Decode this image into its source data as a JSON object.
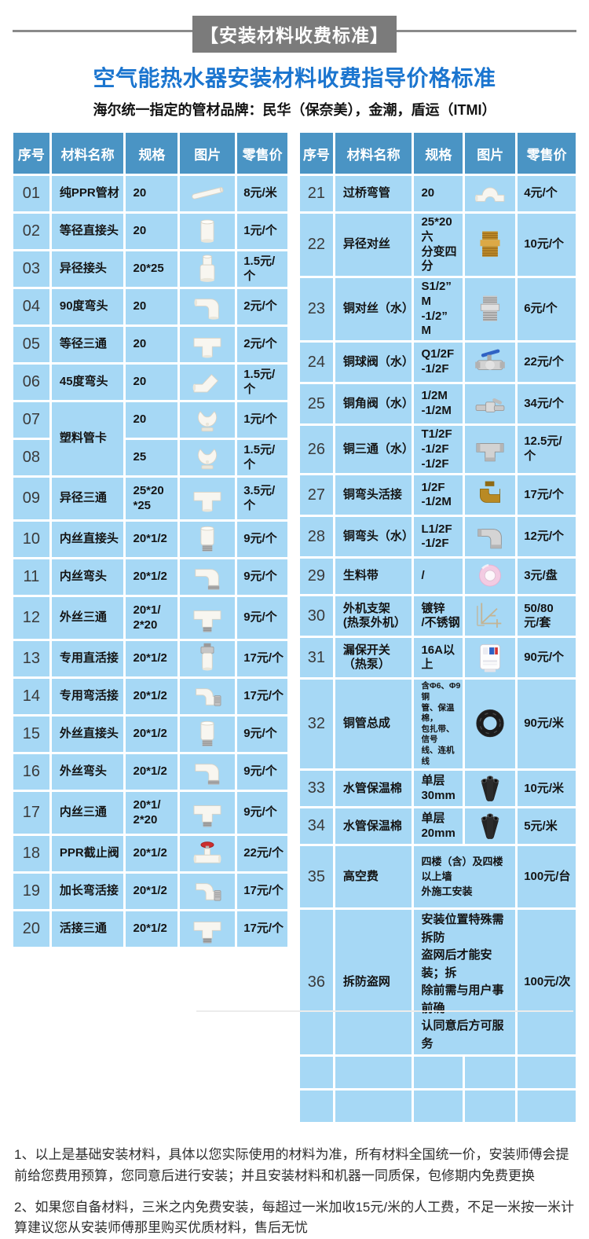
{
  "banner": "【安装材料收费标准】",
  "title": "空气能热水器安装材料收费指导价格标准",
  "subtitle": "海尔统一指定的管材品牌：民华（保奈美），金潮，盾运（ITMI）",
  "columns": [
    "序号",
    "材料名称",
    "规格",
    "图片",
    "零售价"
  ],
  "colors": {
    "header_bg": "#4a94c4",
    "cell_bg": "#a6d8f5",
    "title_blue": "#1b75cf",
    "banner_gray": "#7b7b7b"
  },
  "left_table": {
    "rows": [
      {
        "no": "01",
        "name": "纯PPR管材",
        "spec": "20",
        "photo": "white-pipe",
        "price": "8元/米"
      },
      {
        "no": "02",
        "name": "等径直接头",
        "spec": "20",
        "photo": "white-coupler",
        "price": "1元/个"
      },
      {
        "no": "03",
        "name": "异径接头",
        "spec": "20*25",
        "photo": "white-reducer",
        "price": "1.5元/个"
      },
      {
        "no": "04",
        "name": "90度弯头",
        "spec": "20",
        "photo": "white-elbow-90",
        "price": "2元/个"
      },
      {
        "no": "05",
        "name": "等径三通",
        "spec": "20",
        "photo": "white-tee",
        "price": "2元/个"
      },
      {
        "no": "06",
        "name": "45度弯头",
        "spec": "20",
        "photo": "white-elbow-45",
        "price": "1.5元/个"
      },
      {
        "no": "07",
        "name": "塑料管卡",
        "name_rowspan": 2,
        "spec": "20",
        "photo": "pipe-clip",
        "price": "1元/个"
      },
      {
        "no": "08",
        "name_skip": true,
        "spec": "25",
        "photo": "pipe-clip",
        "price": "1.5元/个"
      },
      {
        "no": "09",
        "name": "异径三通",
        "spec": "25*20\n*25",
        "photo": "white-tee",
        "price": "3.5元/个"
      },
      {
        "no": "10",
        "name": "内丝直接头",
        "spec": "20*1/2",
        "photo": "white-coupler-metal",
        "price": "9元/个"
      },
      {
        "no": "11",
        "name": "内丝弯头",
        "spec": "20*1/2",
        "photo": "white-elbow-metal",
        "price": "9元/个"
      },
      {
        "no": "12",
        "name": "外丝三通",
        "spec": "20*1/\n2*20",
        "photo": "white-tee-metal",
        "price": "9元/个"
      },
      {
        "no": "13",
        "name": "专用直活接",
        "spec": "20*1/2",
        "photo": "white-union-straight",
        "price": "17元/个"
      },
      {
        "no": "14",
        "name": "专用弯活接",
        "spec": "20*1/2",
        "photo": "white-union-elbow",
        "price": "17元/个"
      },
      {
        "no": "15",
        "name": "外丝直接头",
        "spec": "20*1/2",
        "photo": "white-coupler-metal",
        "price": "9元/个"
      },
      {
        "no": "16",
        "name": "外丝弯头",
        "spec": "20*1/2",
        "photo": "white-elbow-metal",
        "price": "9元/个"
      },
      {
        "no": "17",
        "name": "内丝三通",
        "spec": "20*1/\n2*20",
        "photo": "white-tee-metal",
        "price": "9元/个"
      },
      {
        "no": "18",
        "name": "PPR截止阀",
        "spec": "20*1/2",
        "photo": "stop-valve",
        "price": "22元/个"
      },
      {
        "no": "19",
        "name": "加长弯活接",
        "spec": "20*1/2",
        "photo": "white-union-elbow",
        "price": "17元/个"
      },
      {
        "no": "20",
        "name": "活接三通",
        "spec": "20*1/2",
        "photo": "white-tee-metal",
        "price": "17元/个"
      }
    ]
  },
  "right_table": {
    "rows": [
      {
        "no": "21",
        "name": "过桥弯管",
        "spec": "20",
        "photo": "bridge-bend",
        "price": "4元/个"
      },
      {
        "no": "22",
        "name": "异径对丝",
        "spec": "25*20六\n分变四分",
        "photo": "brass-nipple",
        "price": "10元/个"
      },
      {
        "no": "23",
        "name": "铜对丝（水）",
        "spec": "S1/2” M\n-1/2” M",
        "photo": "steel-nipple",
        "price": "6元/个"
      },
      {
        "no": "24",
        "name": "铜球阀（水）",
        "spec": "Q1/2F\n-1/2F",
        "photo": "ball-valve",
        "price": "22元/个"
      },
      {
        "no": "25",
        "name": "铜角阀（水）",
        "spec": "1/2M\n-1/2M",
        "photo": "angle-valve",
        "price": "34元/个"
      },
      {
        "no": "26",
        "name": "铜三通（水）",
        "spec": "T1/2F\n-1/2F\n-1/2F",
        "photo": "steel-tee",
        "price": "12.5元/个"
      },
      {
        "no": "27",
        "name": "铜弯头活接",
        "spec": "1/2F\n-1/2M",
        "photo": "brass-elbow",
        "price": "17元/个"
      },
      {
        "no": "28",
        "name": "铜弯头（水）",
        "spec": "L1/2F\n-1/2F",
        "photo": "steel-elbow",
        "price": "12元/个"
      },
      {
        "no": "29",
        "name": "生料带",
        "spec": "/",
        "photo": "tape-roll",
        "price": "3元/盘"
      },
      {
        "no": "30",
        "name": "外机支架\n(热泵外机）",
        "spec": "镀锌\n/不锈钢",
        "photo": "bracket",
        "price": "50/80\n元/套"
      },
      {
        "no": "31",
        "name": "漏保开关\n（热泵）",
        "spec": "16A以上",
        "photo": "breaker",
        "price": "90元/个"
      },
      {
        "no": "32",
        "name": "铜管总成",
        "spec": "含Φ6、Φ9铜\n管、保温棉，\n包扎带、信号\n线、连机线",
        "spec_small": true,
        "photo": "coil",
        "price": "90元/米"
      },
      {
        "no": "33",
        "name": "水管保温棉",
        "spec": "单层30mm",
        "photo": "foam-tubes",
        "price": "10元/米"
      },
      {
        "no": "34",
        "name": "水管保温棉",
        "spec": "单层20mm",
        "photo": "foam-tubes",
        "price": "5元/米"
      },
      {
        "no": "35",
        "name": "高空费",
        "spec": "四楼（含）及四楼以上墙\n外施工安装",
        "spec_colspan": 2,
        "spec_style": "sm",
        "price": "100元/台"
      },
      {
        "no": "36",
        "name": "拆防盗网",
        "spec": "安装位置特殊需拆防\n盗网后才能安装；拆\n除前需与用户事前确\n认同意后方可服务",
        "spec_colspan": 2,
        "spec_style": "md",
        "price": "100元/次"
      },
      {
        "empty": true
      },
      {
        "empty": true
      }
    ]
  },
  "notes": [
    "1、以上是基础安装材料，具体以您实际使用的材料为准，所有材料全国统一价，安装师傅会提前给您费用预算，您同意后进行安装；并且安装材料和机器一同质保，包修期内免费更换",
    "2、如果您自备材料，三米之内免费安装，每超过一米加收15元/米的人工费，不足一米按一米计算建议您从安装师傅那里购买优质材料，售后无忧"
  ]
}
